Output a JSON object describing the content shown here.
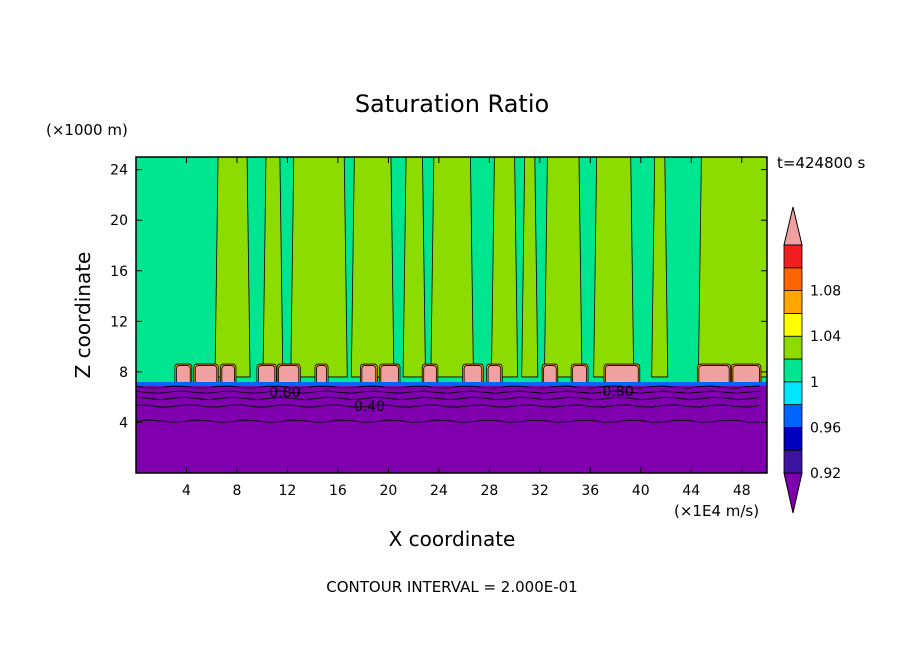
{
  "chart_data": {
    "type": "heatmap",
    "title": "Saturation Ratio",
    "xlabel": "X coordinate",
    "ylabel": "Z coordinate",
    "x_unit": "(×1E4 m/s)",
    "y_unit": "(×1000 m)",
    "time_label": "t=424800 s",
    "footer": "CONTOUR INTERVAL = 2.000E-01",
    "xlim": [
      0,
      50
    ],
    "ylim": [
      0,
      25
    ],
    "x_ticks": [
      4,
      8,
      12,
      16,
      20,
      24,
      28,
      32,
      36,
      40,
      44,
      48
    ],
    "y_ticks": [
      4,
      8,
      12,
      16,
      20,
      24
    ],
    "grid": false,
    "colorbar": {
      "labels": [
        "0.92",
        "0.96",
        "1",
        "1.04",
        "1.08"
      ],
      "bins": [
        {
          "from": null,
          "to": 0.92,
          "color": "#8000b0"
        },
        {
          "from": 0.92,
          "to": 0.94,
          "color": "#3c14a0"
        },
        {
          "from": 0.94,
          "to": 0.96,
          "color": "#0000c0"
        },
        {
          "from": 0.96,
          "to": 0.98,
          "color": "#0064ff"
        },
        {
          "from": 0.98,
          "to": 1.0,
          "color": "#00e6ff"
        },
        {
          "from": 1.0,
          "to": 1.02,
          "color": "#00e690"
        },
        {
          "from": 1.02,
          "to": 1.04,
          "color": "#8cdc00"
        },
        {
          "from": 1.04,
          "to": 1.06,
          "color": "#ffff00"
        },
        {
          "from": 1.06,
          "to": 1.08,
          "color": "#ffa500"
        },
        {
          "from": 1.08,
          "to": 1.1,
          "color": "#ff6400"
        },
        {
          "from": 1.1,
          "to": 1.12,
          "color": "#f01e1e"
        },
        {
          "from": 1.12,
          "to": null,
          "color": "#f0a0a0"
        }
      ]
    },
    "contour_labels": [
      {
        "text": "0.40",
        "x": 18.5,
        "z": 5.3
      },
      {
        "text": "0.80",
        "x": 38.2,
        "z": 6.5
      },
      {
        "text": "0.80",
        "x": 11.8,
        "z": 6.4
      }
    ],
    "regions": [
      {
        "name": "subsaturated-layer",
        "z_from": 0,
        "z_to": 6.8,
        "value": 0.5
      },
      {
        "name": "upper-layer",
        "z_from": 6.8,
        "z_to": 25,
        "value": 1.0
      },
      {
        "name": "supersaturated-cloud-base",
        "z_from": 7.0,
        "z_to": 8.5,
        "value": 1.12
      }
    ],
    "green_plumes_x": [
      [
        6.5,
        8.8
      ],
      [
        10.3,
        11.4
      ],
      [
        12.5,
        16.5
      ],
      [
        17.3,
        20.2
      ],
      [
        21.4,
        22.7
      ],
      [
        23.6,
        26.5
      ],
      [
        28.4,
        30.0
      ],
      [
        30.8,
        31.6
      ],
      [
        32.6,
        35.1
      ],
      [
        36.5,
        39.2
      ],
      [
        41.1,
        41.9
      ],
      [
        44.8,
        50.0
      ]
    ],
    "cloud_base_blobs_x": [
      [
        3.2,
        4.3
      ],
      [
        4.7,
        6.4
      ],
      [
        6.8,
        7.8
      ],
      [
        9.7,
        11.0
      ],
      [
        11.3,
        12.9
      ],
      [
        14.3,
        15.1
      ],
      [
        17.9,
        19.0
      ],
      [
        19.4,
        20.8
      ],
      [
        22.8,
        23.8
      ],
      [
        26.0,
        27.4
      ],
      [
        27.9,
        28.9
      ],
      [
        32.3,
        33.3
      ],
      [
        34.6,
        35.7
      ],
      [
        37.2,
        39.8
      ],
      [
        44.6,
        47.0
      ],
      [
        47.3,
        49.4
      ]
    ]
  }
}
